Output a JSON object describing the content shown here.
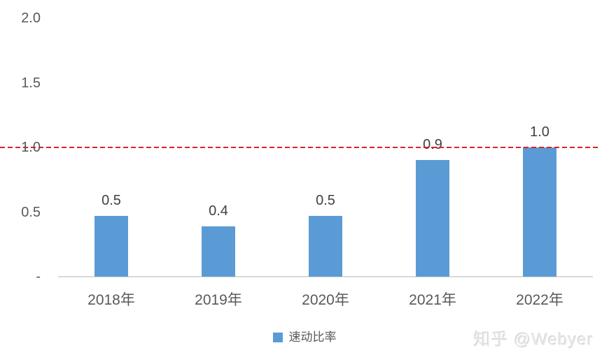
{
  "chart_data": {
    "type": "bar",
    "title": "",
    "categories": [
      "2018年",
      "2019年",
      "2020年",
      "2021年",
      "2022年"
    ],
    "series": [
      {
        "name": "速动比率",
        "values": [
          0.5,
          0.4,
          0.5,
          0.9,
          1.0
        ]
      }
    ],
    "values_precise": [
      0.47,
      0.39,
      0.47,
      0.9,
      1.0
    ],
    "data_labels": [
      "0.5",
      "0.4",
      "0.5",
      "0.9",
      "1.0"
    ],
    "yticks": [
      {
        "label": "2.0",
        "value": 2.0
      },
      {
        "label": "1.5",
        "value": 1.5
      },
      {
        "label": "1.0",
        "value": 1.0
      },
      {
        "label": "0.5",
        "value": 0.5
      },
      {
        "label": "-",
        "value": 0.0
      }
    ],
    "ylim": [
      0,
      2.0
    ],
    "grid": false,
    "bar_color": "#5b9bd5",
    "axis_line_color": "#d9d9d9",
    "reference_line": {
      "value": 1.0,
      "style": "dashed",
      "color": "#d8232a"
    },
    "legend": {
      "position": "bottom",
      "items": [
        {
          "label": "速动比率",
          "color": "#5b9bd5"
        }
      ]
    }
  },
  "watermark": {
    "text": "知乎 @Webyer"
  }
}
